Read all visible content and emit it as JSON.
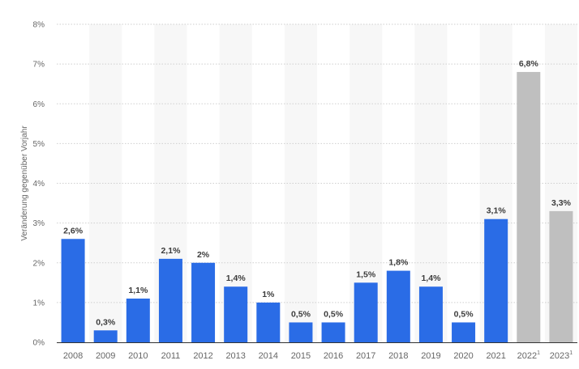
{
  "chart_data": {
    "type": "bar",
    "categories": [
      "2008",
      "2009",
      "2010",
      "2011",
      "2012",
      "2013",
      "2014",
      "2015",
      "2016",
      "2017",
      "2018",
      "2019",
      "2020",
      "2021",
      "2022",
      "2023"
    ],
    "category_superscripts": [
      "",
      "",
      "",
      "",
      "",
      "",
      "",
      "",
      "",
      "",
      "",
      "",
      "",
      "",
      "1",
      "1"
    ],
    "values": [
      2.6,
      0.3,
      1.1,
      2.1,
      2.0,
      1.4,
      1.0,
      0.5,
      0.5,
      1.5,
      1.8,
      1.4,
      0.5,
      3.1,
      6.8,
      3.3
    ],
    "value_labels": [
      "2,6%",
      "0,3%",
      "1,1%",
      "2,1%",
      "2%",
      "1,4%",
      "1%",
      "0,5%",
      "0,5%",
      "1,5%",
      "1,8%",
      "1,4%",
      "0,5%",
      "3,1%",
      "6,8%",
      "3,3%"
    ],
    "forecast": [
      false,
      false,
      false,
      false,
      false,
      false,
      false,
      false,
      false,
      false,
      false,
      false,
      false,
      false,
      true,
      true
    ],
    "ylabel": "Veränderung gegenüber Vorjahr",
    "ylim": [
      0,
      8
    ],
    "yticks": [
      "0%",
      "1%",
      "2%",
      "3%",
      "4%",
      "5%",
      "6%",
      "7%",
      "8%"
    ],
    "grid": true,
    "colors": {
      "actual": "#2a6ce6",
      "forecast": "#bfbfbf",
      "band": "#f7f7f7",
      "grid": "#cfcfcf",
      "tick_text": "#666666",
      "label_text": "#3c3c3c",
      "axis_line": "#333333"
    }
  }
}
